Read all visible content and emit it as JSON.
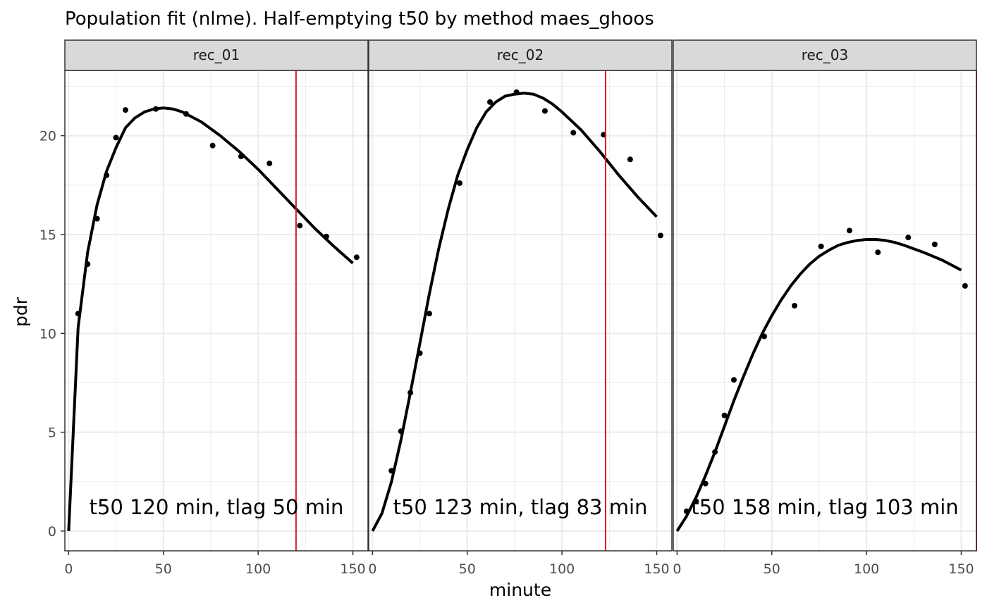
{
  "chart_data": {
    "type": "scatter",
    "title": "Population fit (nlme). Half-emptying t50 by method maes_ghoos",
    "xlabel": "minute",
    "ylabel": "pdr",
    "xlim": [
      -2,
      158
    ],
    "ylim": [
      -1,
      23.3
    ],
    "x_ticks": [
      0,
      50,
      100,
      150
    ],
    "y_ticks": [
      0,
      5,
      10,
      15,
      20
    ],
    "grid": true,
    "legend": "none",
    "colors": {
      "points": "#000000",
      "fit_line": "#000000",
      "t50_line": "#e31a1c",
      "strip_bg": "#d9d9d9",
      "grid": "#ebebeb",
      "panel_border": "#333333"
    },
    "facets": [
      {
        "strip_label": "rec_01",
        "annotation": "t50 120 min,  tlag 50 min",
        "t50": 120,
        "points": [
          [
            5,
            11.0
          ],
          [
            10,
            13.5
          ],
          [
            15,
            15.8
          ],
          [
            20,
            18.0
          ],
          [
            25,
            19.9
          ],
          [
            30,
            21.3
          ],
          [
            46,
            21.35
          ],
          [
            62,
            21.1
          ],
          [
            76,
            19.5
          ],
          [
            91,
            18.95
          ],
          [
            106,
            18.6
          ],
          [
            122,
            15.45
          ],
          [
            136,
            14.9
          ],
          [
            152,
            13.85
          ]
        ],
        "fit": [
          [
            0,
            0
          ],
          [
            5,
            10.3
          ],
          [
            10,
            14.1
          ],
          [
            15,
            16.5
          ],
          [
            20,
            18.2
          ],
          [
            25,
            19.4
          ],
          [
            30,
            20.4
          ],
          [
            35,
            20.9
          ],
          [
            40,
            21.2
          ],
          [
            45,
            21.35
          ],
          [
            50,
            21.4
          ],
          [
            55,
            21.35
          ],
          [
            60,
            21.2
          ],
          [
            70,
            20.7
          ],
          [
            80,
            20.0
          ],
          [
            90,
            19.2
          ],
          [
            100,
            18.3
          ],
          [
            110,
            17.3
          ],
          [
            120,
            16.3
          ],
          [
            130,
            15.3
          ],
          [
            140,
            14.4
          ],
          [
            150,
            13.55
          ]
        ]
      },
      {
        "strip_label": "rec_02",
        "annotation": "t50 123 min,  tlag 83 min",
        "t50": 123,
        "points": [
          [
            10,
            3.05
          ],
          [
            15,
            5.05
          ],
          [
            20,
            7.0
          ],
          [
            25,
            9.0
          ],
          [
            30,
            11.0
          ],
          [
            46,
            17.6
          ],
          [
            62,
            21.7
          ],
          [
            76,
            22.2
          ],
          [
            91,
            21.25
          ],
          [
            106,
            20.15
          ],
          [
            122,
            20.05
          ],
          [
            136,
            18.8
          ],
          [
            152,
            14.95
          ]
        ],
        "fit": [
          [
            0,
            0
          ],
          [
            5,
            0.9
          ],
          [
            10,
            2.5
          ],
          [
            15,
            4.6
          ],
          [
            20,
            7.0
          ],
          [
            25,
            9.5
          ],
          [
            30,
            12.0
          ],
          [
            35,
            14.3
          ],
          [
            40,
            16.3
          ],
          [
            45,
            18.0
          ],
          [
            50,
            19.3
          ],
          [
            55,
            20.4
          ],
          [
            60,
            21.2
          ],
          [
            65,
            21.7
          ],
          [
            70,
            22.0
          ],
          [
            75,
            22.1
          ],
          [
            80,
            22.15
          ],
          [
            85,
            22.1
          ],
          [
            90,
            21.9
          ],
          [
            95,
            21.6
          ],
          [
            100,
            21.2
          ],
          [
            110,
            20.3
          ],
          [
            120,
            19.2
          ],
          [
            130,
            18.0
          ],
          [
            140,
            16.9
          ],
          [
            150,
            15.9
          ]
        ]
      },
      {
        "strip_label": "rec_03",
        "annotation": "t50 158 min,  tlag 103 min",
        "t50": 158,
        "points": [
          [
            5,
            1.0
          ],
          [
            10,
            1.5
          ],
          [
            15,
            2.4
          ],
          [
            20,
            4.0
          ],
          [
            25,
            5.85
          ],
          [
            30,
            7.65
          ],
          [
            46,
            9.85
          ],
          [
            62,
            11.4
          ],
          [
            76,
            14.4
          ],
          [
            91,
            15.2
          ],
          [
            106,
            14.1
          ],
          [
            122,
            14.85
          ],
          [
            136,
            14.5
          ],
          [
            152,
            12.4
          ]
        ],
        "fit": [
          [
            0,
            0
          ],
          [
            5,
            0.75
          ],
          [
            10,
            1.7
          ],
          [
            15,
            2.8
          ],
          [
            20,
            4.0
          ],
          [
            25,
            5.3
          ],
          [
            30,
            6.6
          ],
          [
            35,
            7.8
          ],
          [
            40,
            8.95
          ],
          [
            45,
            10.0
          ],
          [
            50,
            10.9
          ],
          [
            55,
            11.7
          ],
          [
            60,
            12.4
          ],
          [
            65,
            13.0
          ],
          [
            70,
            13.5
          ],
          [
            75,
            13.9
          ],
          [
            80,
            14.2
          ],
          [
            85,
            14.45
          ],
          [
            90,
            14.6
          ],
          [
            95,
            14.7
          ],
          [
            100,
            14.75
          ],
          [
            105,
            14.75
          ],
          [
            110,
            14.7
          ],
          [
            115,
            14.6
          ],
          [
            120,
            14.45
          ],
          [
            130,
            14.1
          ],
          [
            140,
            13.7
          ],
          [
            150,
            13.2
          ]
        ]
      }
    ]
  }
}
